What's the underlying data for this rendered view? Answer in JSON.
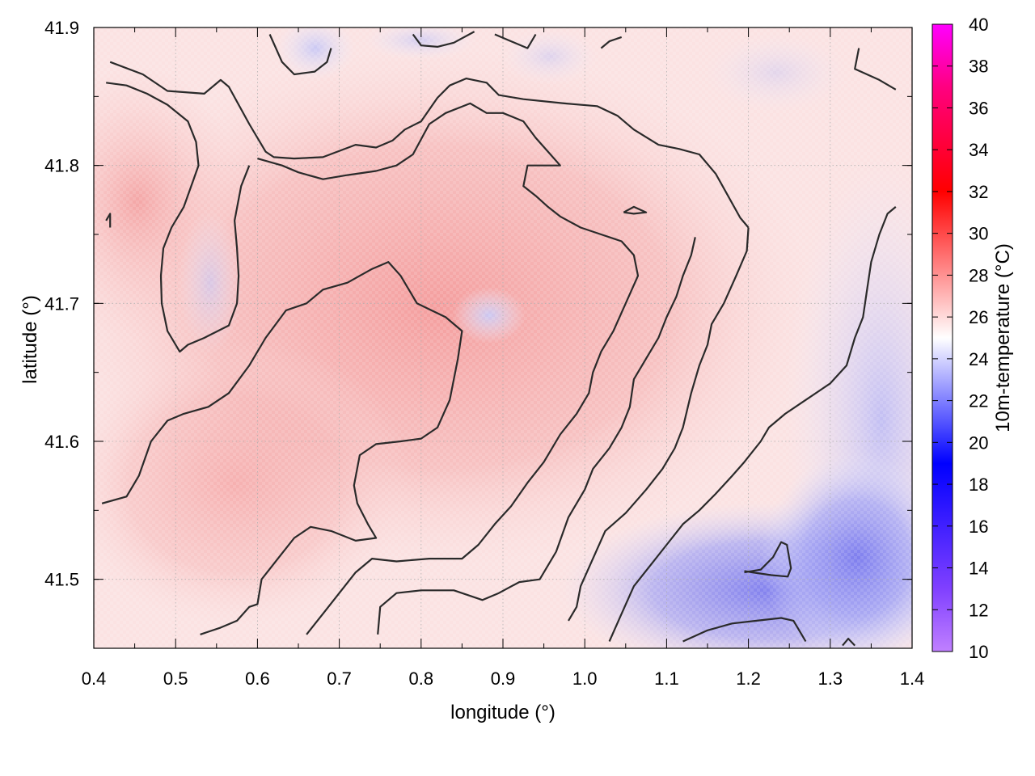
{
  "chart_data": {
    "type": "heatmap",
    "title": "",
    "xlabel": "longitude (°)",
    "ylabel": "latitude (°)",
    "colorbar_label": "10m-temperature (°C)",
    "xlim": [
      0.4,
      1.4
    ],
    "ylim": [
      41.45,
      41.9
    ],
    "xticks": [
      "0.4",
      "0.5",
      "0.6",
      "0.7",
      "0.8",
      "0.9",
      "1.0",
      "1.1",
      "1.2",
      "1.3",
      "1.4"
    ],
    "yticks": [
      "41.5",
      "41.6",
      "41.7",
      "41.8",
      "41.9"
    ],
    "colorbar_range": [
      10,
      40
    ],
    "colorbar_ticks": [
      "10",
      "12",
      "14",
      "16",
      "18",
      "20",
      "22",
      "24",
      "26",
      "28",
      "30",
      "32",
      "34",
      "36",
      "38",
      "40"
    ],
    "colorscale": [
      {
        "value": 10,
        "color": "#c080ff"
      },
      {
        "value": 13,
        "color": "#8040ff"
      },
      {
        "value": 19,
        "color": "#0000ff"
      },
      {
        "value": 25,
        "color": "#ffffff"
      },
      {
        "value": 32,
        "color": "#ff0000"
      },
      {
        "value": 37,
        "color": "#ff0080"
      },
      {
        "value": 40,
        "color": "#ff00ff"
      }
    ],
    "grid": true,
    "field_description_values": {
      "warm_core_center": [
        0.8,
        41.7
      ],
      "warm_core_temp": 26.8,
      "cool_region_center": [
        1.22,
        41.5
      ],
      "cool_region_temp": 22.5,
      "background_temp": 25.5
    },
    "contours": [
      {
        "name": "contour-a",
        "points": [
          [
            0.42,
            41.875
          ],
          [
            0.46,
            41.866
          ],
          [
            0.49,
            41.854
          ],
          [
            0.535,
            41.852
          ],
          [
            0.555,
            41.862
          ],
          [
            0.565,
            41.857
          ],
          [
            0.59,
            41.83
          ],
          [
            0.61,
            41.81
          ],
          [
            0.62,
            41.806
          ],
          [
            0.645,
            41.805
          ],
          [
            0.68,
            41.806
          ],
          [
            0.72,
            41.815
          ],
          [
            0.745,
            41.813
          ],
          [
            0.765,
            41.818
          ],
          [
            0.78,
            41.826
          ],
          [
            0.8,
            41.832
          ],
          [
            0.82,
            41.849
          ],
          [
            0.835,
            41.858
          ],
          [
            0.855,
            41.863
          ],
          [
            0.88,
            41.86
          ],
          [
            0.895,
            41.851
          ],
          [
            0.925,
            41.848
          ],
          [
            0.975,
            41.845
          ],
          [
            1.015,
            41.843
          ],
          [
            1.04,
            41.836
          ],
          [
            1.06,
            41.826
          ],
          [
            1.09,
            41.815
          ],
          [
            1.115,
            41.812
          ],
          [
            1.14,
            41.808
          ],
          [
            1.16,
            41.794
          ],
          [
            1.175,
            41.778
          ],
          [
            1.19,
            41.762
          ],
          [
            1.2,
            41.755
          ]
        ]
      },
      {
        "name": "contour-a2",
        "points": [
          [
            1.2,
            41.755
          ],
          [
            1.198,
            41.738
          ],
          [
            1.185,
            41.72
          ],
          [
            1.17,
            41.7
          ],
          [
            1.155,
            41.685
          ],
          [
            1.15,
            41.67
          ],
          [
            1.14,
            41.655
          ],
          [
            1.13,
            41.635
          ],
          [
            1.12,
            41.61
          ],
          [
            1.11,
            41.595
          ],
          [
            1.095,
            41.58
          ],
          [
            1.075,
            41.565
          ],
          [
            1.05,
            41.548
          ],
          [
            1.025,
            41.535
          ],
          [
            1.01,
            41.515
          ],
          [
            0.995,
            41.495
          ],
          [
            0.99,
            41.48
          ],
          [
            0.98,
            41.47
          ]
        ]
      },
      {
        "name": "contour-b",
        "points": [
          [
            0.415,
            41.86
          ],
          [
            0.44,
            41.858
          ],
          [
            0.465,
            41.852
          ],
          [
            0.49,
            41.844
          ],
          [
            0.515,
            41.832
          ],
          [
            0.525,
            41.817
          ],
          [
            0.528,
            41.8
          ],
          [
            0.522,
            41.79
          ],
          [
            0.51,
            41.77
          ],
          [
            0.495,
            41.755
          ],
          [
            0.485,
            41.74
          ],
          [
            0.482,
            41.72
          ],
          [
            0.483,
            41.7
          ],
          [
            0.49,
            41.68
          ],
          [
            0.505,
            41.665
          ],
          [
            0.515,
            41.67
          ],
          [
            0.535,
            41.675
          ],
          [
            0.565,
            41.684
          ],
          [
            0.575,
            41.7
          ],
          [
            0.577,
            41.72
          ],
          [
            0.575,
            41.74
          ],
          [
            0.572,
            41.76
          ],
          [
            0.58,
            41.785
          ],
          [
            0.59,
            41.8
          ]
        ]
      },
      {
        "name": "contour-c",
        "points": [
          [
            0.415,
            41.76
          ],
          [
            0.42,
            41.765
          ],
          [
            0.42,
            41.755
          ]
        ]
      },
      {
        "name": "contour-d",
        "points": [
          [
            0.41,
            41.555
          ],
          [
            0.44,
            41.56
          ],
          [
            0.455,
            41.575
          ],
          [
            0.47,
            41.6
          ],
          [
            0.49,
            41.615
          ],
          [
            0.51,
            41.62
          ],
          [
            0.54,
            41.625
          ],
          [
            0.565,
            41.635
          ],
          [
            0.59,
            41.655
          ],
          [
            0.61,
            41.675
          ],
          [
            0.635,
            41.695
          ],
          [
            0.66,
            41.7
          ],
          [
            0.68,
            41.71
          ],
          [
            0.71,
            41.715
          ],
          [
            0.74,
            41.725
          ],
          [
            0.76,
            41.73
          ],
          [
            0.775,
            41.72
          ],
          [
            0.795,
            41.7
          ],
          [
            0.83,
            41.69
          ],
          [
            0.85,
            41.68
          ],
          [
            0.845,
            41.66
          ],
          [
            0.835,
            41.63
          ],
          [
            0.82,
            41.61
          ],
          [
            0.8,
            41.602
          ],
          [
            0.775,
            41.6
          ],
          [
            0.745,
            41.598
          ],
          [
            0.725,
            41.59
          ],
          [
            0.718,
            41.568
          ],
          [
            0.722,
            41.555
          ],
          [
            0.735,
            41.54
          ],
          [
            0.745,
            41.53
          ],
          [
            0.72,
            41.528
          ],
          [
            0.69,
            41.535
          ],
          [
            0.665,
            41.538
          ],
          [
            0.645,
            41.53
          ],
          [
            0.625,
            41.515
          ],
          [
            0.605,
            41.5
          ],
          [
            0.6,
            41.482
          ],
          [
            0.59,
            41.48
          ],
          [
            0.575,
            41.47
          ],
          [
            0.555,
            41.465
          ],
          [
            0.53,
            41.46
          ]
        ]
      },
      {
        "name": "contour-e",
        "points": [
          [
            0.66,
            41.46
          ],
          [
            0.68,
            41.475
          ],
          [
            0.7,
            41.49
          ],
          [
            0.72,
            41.505
          ],
          [
            0.74,
            41.515
          ],
          [
            0.77,
            41.513
          ],
          [
            0.81,
            41.515
          ],
          [
            0.85,
            41.515
          ],
          [
            0.87,
            41.525
          ],
          [
            0.89,
            41.54
          ],
          [
            0.91,
            41.553
          ],
          [
            0.93,
            41.57
          ],
          [
            0.95,
            41.585
          ],
          [
            0.97,
            41.605
          ],
          [
            0.99,
            41.62
          ],
          [
            1.005,
            41.635
          ],
          [
            1.01,
            41.65
          ],
          [
            1.02,
            41.665
          ],
          [
            1.035,
            41.68
          ],
          [
            1.05,
            41.7
          ],
          [
            1.065,
            41.72
          ],
          [
            1.06,
            41.735
          ],
          [
            1.045,
            41.745
          ],
          [
            1.02,
            41.75
          ],
          [
            0.995,
            41.755
          ],
          [
            0.97,
            41.763
          ],
          [
            0.955,
            41.77
          ],
          [
            0.94,
            41.778
          ],
          [
            0.925,
            41.785
          ],
          [
            0.93,
            41.8
          ],
          [
            0.95,
            41.8
          ],
          [
            0.97,
            41.8
          ],
          [
            0.955,
            41.81
          ],
          [
            0.94,
            41.82
          ],
          [
            0.925,
            41.832
          ],
          [
            0.9,
            41.838
          ],
          [
            0.88,
            41.838
          ],
          [
            0.86,
            41.845
          ],
          [
            0.83,
            41.838
          ],
          [
            0.81,
            41.83
          ],
          [
            0.79,
            41.808
          ],
          [
            0.77,
            41.8
          ],
          [
            0.745,
            41.796
          ],
          [
            0.71,
            41.793
          ],
          [
            0.68,
            41.79
          ],
          [
            0.65,
            41.795
          ],
          [
            0.63,
            41.8
          ],
          [
            0.6,
            41.805
          ]
        ]
      },
      {
        "name": "contour-f",
        "points": [
          [
            0.747,
            41.46
          ],
          [
            0.75,
            41.48
          ],
          [
            0.77,
            41.49
          ],
          [
            0.8,
            41.492
          ],
          [
            0.84,
            41.492
          ],
          [
            0.875,
            41.485
          ],
          [
            0.895,
            41.49
          ],
          [
            0.92,
            41.498
          ],
          [
            0.945,
            41.5
          ],
          [
            0.965,
            41.52
          ],
          [
            0.98,
            41.545
          ],
          [
            1.0,
            41.565
          ],
          [
            1.01,
            41.58
          ],
          [
            1.03,
            41.595
          ],
          [
            1.045,
            41.61
          ],
          [
            1.055,
            41.625
          ],
          [
            1.06,
            41.645
          ],
          [
            1.075,
            41.66
          ],
          [
            1.09,
            41.675
          ],
          [
            1.1,
            41.69
          ],
          [
            1.112,
            41.705
          ],
          [
            1.12,
            41.72
          ],
          [
            1.13,
            41.735
          ],
          [
            1.135,
            41.748
          ]
        ]
      },
      {
        "name": "contour-g",
        "points": [
          [
            1.03,
            41.455
          ],
          [
            1.045,
            41.475
          ],
          [
            1.06,
            41.495
          ],
          [
            1.08,
            41.51
          ],
          [
            1.1,
            41.525
          ],
          [
            1.12,
            41.54
          ],
          [
            1.14,
            41.55
          ],
          [
            1.16,
            41.562
          ],
          [
            1.18,
            41.575
          ],
          [
            1.195,
            41.585
          ],
          [
            1.215,
            41.6
          ],
          [
            1.225,
            41.61
          ],
          [
            1.245,
            41.62
          ],
          [
            1.27,
            41.63
          ],
          [
            1.3,
            41.642
          ],
          [
            1.32,
            41.655
          ],
          [
            1.33,
            41.675
          ],
          [
            1.34,
            41.69
          ],
          [
            1.345,
            41.71
          ],
          [
            1.35,
            41.73
          ],
          [
            1.36,
            41.75
          ],
          [
            1.37,
            41.765
          ],
          [
            1.38,
            41.77
          ]
        ]
      },
      {
        "name": "contour-h",
        "points": [
          [
            1.12,
            41.455
          ],
          [
            1.15,
            41.463
          ],
          [
            1.18,
            41.468
          ],
          [
            1.21,
            41.47
          ],
          [
            1.24,
            41.472
          ],
          [
            1.255,
            41.47
          ],
          [
            1.265,
            41.46
          ],
          [
            1.27,
            41.455
          ]
        ]
      },
      {
        "name": "contour-i",
        "points": [
          [
            1.195,
            41.505
          ],
          [
            1.215,
            41.507
          ],
          [
            1.23,
            41.516
          ],
          [
            1.24,
            41.527
          ],
          [
            1.247,
            41.525
          ],
          [
            1.252,
            41.508
          ],
          [
            1.248,
            41.502
          ],
          [
            1.228,
            41.503
          ],
          [
            1.205,
            41.505
          ],
          [
            1.195,
            41.506
          ]
        ]
      },
      {
        "name": "contour-j",
        "points": [
          [
            1.0475,
            41.766
          ],
          [
            1.06,
            41.77
          ],
          [
            1.075,
            41.766
          ],
          [
            1.06,
            41.765
          ],
          [
            1.0475,
            41.766
          ]
        ]
      },
      {
        "name": "contour-k",
        "points": [
          [
            0.615,
            41.895
          ],
          [
            0.63,
            41.875
          ],
          [
            0.645,
            41.866
          ],
          [
            0.67,
            41.868
          ],
          [
            0.685,
            41.875
          ],
          [
            0.69,
            41.885
          ]
        ]
      },
      {
        "name": "contour-l",
        "points": [
          [
            0.79,
            41.895
          ],
          [
            0.8,
            41.887
          ],
          [
            0.82,
            41.886
          ],
          [
            0.84,
            41.889
          ],
          [
            0.865,
            41.897
          ]
        ]
      },
      {
        "name": "contour-m",
        "points": [
          [
            0.89,
            41.895
          ],
          [
            0.91,
            41.89
          ],
          [
            0.93,
            41.885
          ],
          [
            0.94,
            41.895
          ]
        ]
      },
      {
        "name": "contour-n",
        "points": [
          [
            1.02,
            41.885
          ],
          [
            1.03,
            41.89
          ],
          [
            1.045,
            41.893
          ]
        ]
      },
      {
        "name": "contour-o",
        "points": [
          [
            1.335,
            41.885
          ],
          [
            1.33,
            41.87
          ],
          [
            1.36,
            41.862
          ],
          [
            1.38,
            41.855
          ]
        ]
      },
      {
        "name": "contour-p",
        "points": [
          [
            1.315,
            41.452
          ],
          [
            1.322,
            41.457
          ],
          [
            1.33,
            41.452
          ]
        ]
      }
    ]
  }
}
